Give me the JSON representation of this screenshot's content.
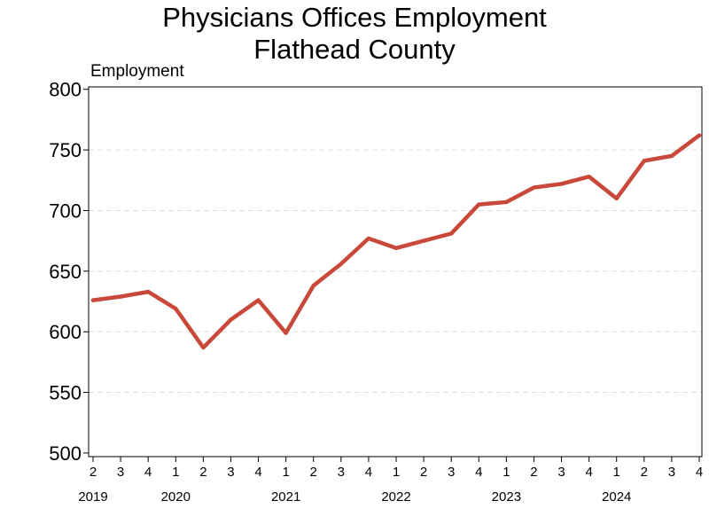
{
  "chart_data": {
    "type": "line",
    "title": "Physicians Offices Employment",
    "subtitle": "Flathead County",
    "ylabel": "Employment",
    "xlabel": "",
    "ylim": [
      497,
      802
    ],
    "yticks": [
      500,
      550,
      600,
      650,
      700,
      750,
      800
    ],
    "grid": true,
    "legend": "none",
    "colors": {
      "line": "#c8483a",
      "grid": "#dddddd",
      "axis": "#000000"
    },
    "quarters": [
      "2",
      "3",
      "4",
      "1",
      "2",
      "3",
      "4",
      "1",
      "2",
      "3",
      "4",
      "1",
      "2",
      "3",
      "4",
      "1",
      "2",
      "3",
      "4",
      "1",
      "2",
      "3",
      "4"
    ],
    "years": [
      {
        "label": "2019",
        "start": 0
      },
      {
        "label": "2020",
        "start": 3
      },
      {
        "label": "2021",
        "start": 7
      },
      {
        "label": "2022",
        "start": 11
      },
      {
        "label": "2023",
        "start": 15
      },
      {
        "label": "2024",
        "start": 19
      }
    ],
    "series": [
      {
        "values": [
          626,
          629,
          633,
          619,
          587,
          610,
          626,
          599,
          638,
          656,
          677,
          669,
          675,
          681,
          705,
          707,
          719,
          722,
          728,
          710,
          741,
          745,
          762
        ]
      }
    ]
  }
}
